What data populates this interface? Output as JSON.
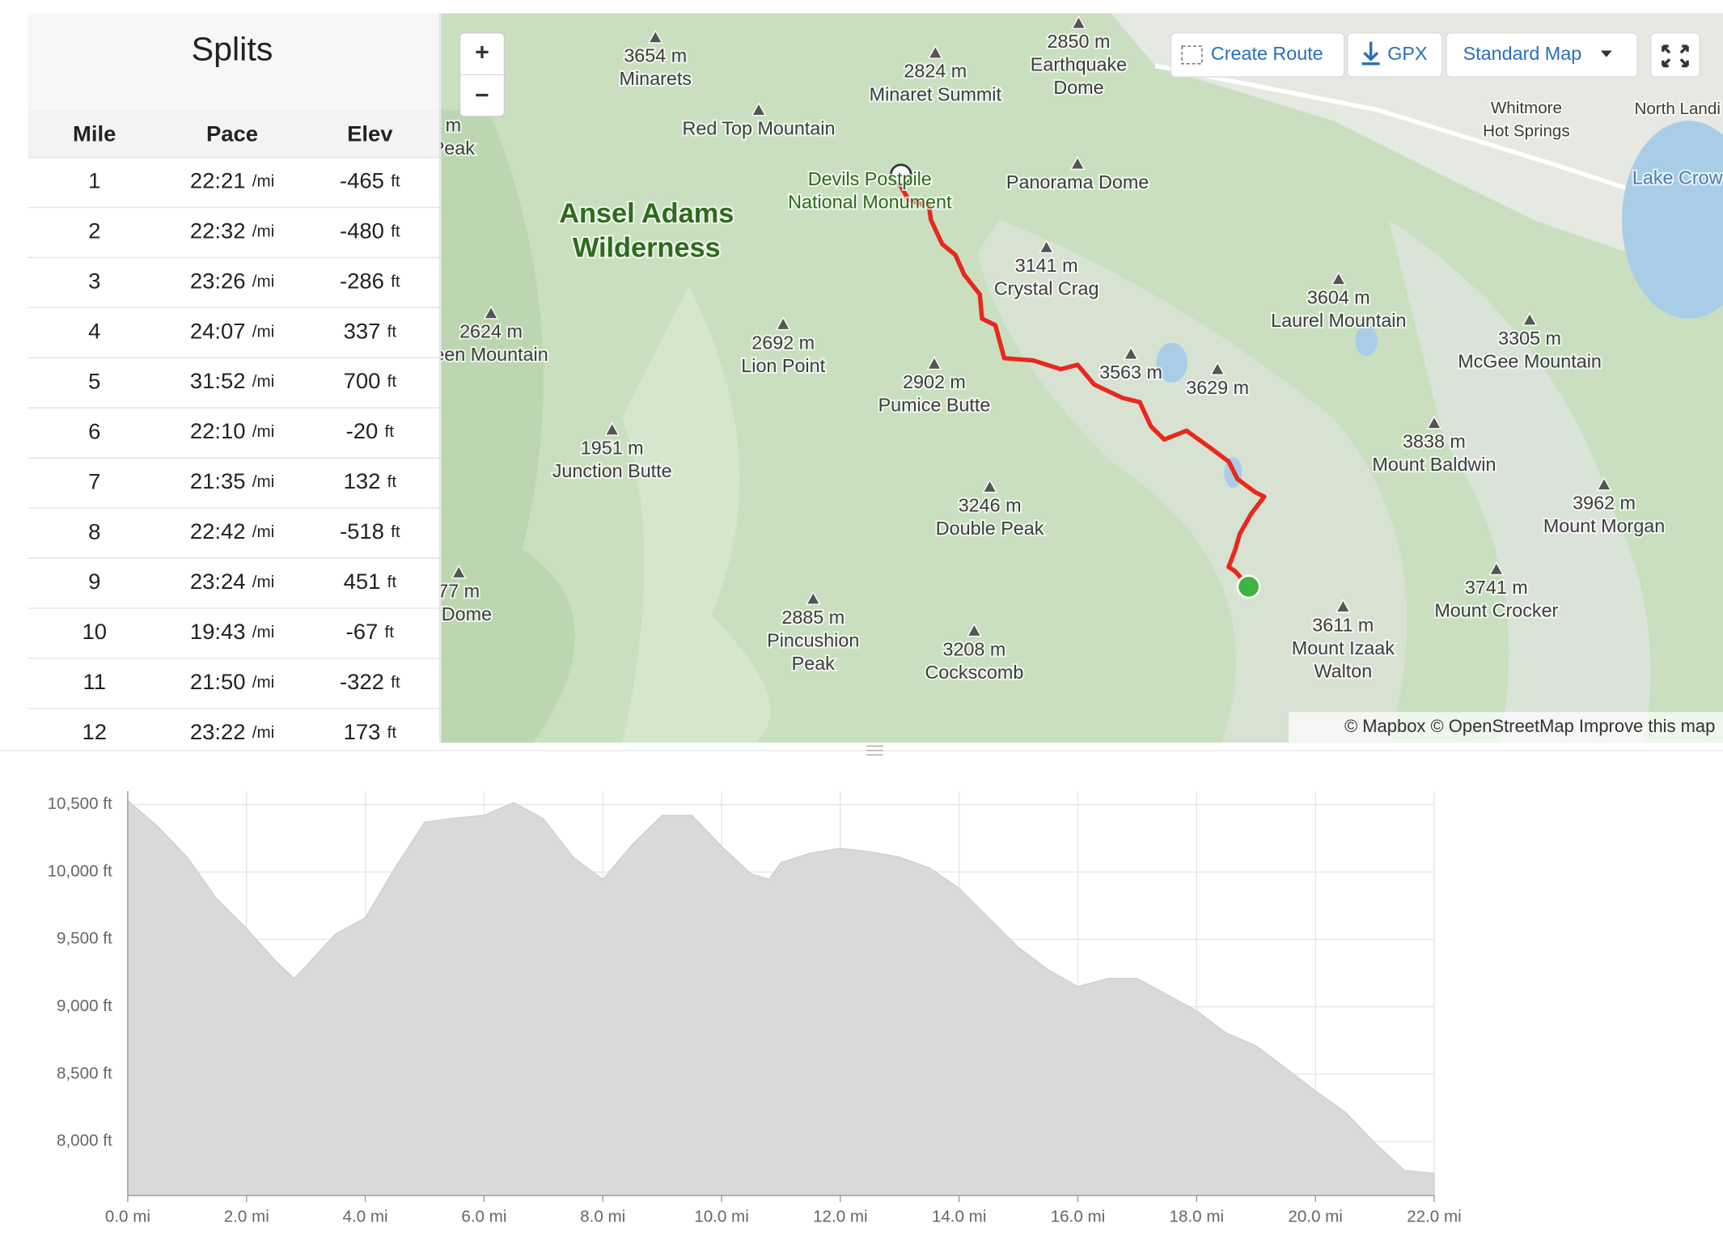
{
  "splits": {
    "title": "Splits",
    "columns": [
      "Mile",
      "Pace",
      "Elev"
    ],
    "pace_unit": "/mi",
    "elev_unit": "ft",
    "rows": [
      [
        "1",
        "22:21",
        "-465"
      ],
      [
        "2",
        "22:32",
        "-480"
      ],
      [
        "3",
        "23:26",
        "-286"
      ],
      [
        "4",
        "24:07",
        "337"
      ],
      [
        "5",
        "31:52",
        "700"
      ],
      [
        "6",
        "22:10",
        "-20"
      ],
      [
        "7",
        "21:35",
        "132"
      ],
      [
        "8",
        "22:42",
        "-518"
      ],
      [
        "9",
        "23:24",
        "451"
      ],
      [
        "10",
        "19:43",
        "-67"
      ],
      [
        "11",
        "21:50",
        "-322"
      ],
      [
        "12",
        "23:22",
        "173"
      ]
    ]
  },
  "map": {
    "zoom_in": "+",
    "zoom_out": "−",
    "buttons": [
      "Create Route",
      "GPX",
      "Standard Map"
    ],
    "attribution": "© Mapbox © OpenStreetMap Improve this map",
    "labels": [
      [
        "3654 m",
        "Minarets"
      ],
      [
        "2824 m",
        "Minaret Summit"
      ],
      [
        "2850 m",
        "Earthquake",
        "Dome"
      ],
      [
        "Red Top Mountain"
      ],
      [
        "m",
        "Peak"
      ],
      [
        "Devils Postpile",
        "National Monument"
      ],
      [
        "Panorama Dome"
      ],
      [
        "Ansel Adams",
        "Wilderness"
      ],
      [
        "3141 m",
        "Crystal Crag"
      ],
      [
        "3604 m",
        "Laurel Mountain"
      ],
      [
        "Whitmore",
        "Hot Springs"
      ],
      [
        "North Landi"
      ],
      [
        "Lake Crow"
      ],
      [
        "2624 m",
        "een Mountain"
      ],
      [
        "2692 m",
        "Lion Point"
      ],
      [
        "3305 m",
        "McGee Mountain"
      ],
      [
        "2902 m",
        "Pumice Butte"
      ],
      [
        "3563 m"
      ],
      [
        "3629 m"
      ],
      [
        "3838 m",
        "Mount Baldwin"
      ],
      [
        "1951 m",
        "Junction Butte"
      ],
      [
        "3246 m",
        "Double Peak"
      ],
      [
        "3962 m",
        "Mount Morgan"
      ],
      [
        "77 m",
        "u Dome"
      ],
      [
        "3741 m",
        "Mount Crocker"
      ],
      [
        "2885 m",
        "Pincushion",
        "Peak"
      ],
      [
        "3208 m",
        "Cockscomb"
      ],
      [
        "3611 m",
        "Mount Izaak",
        "Walton"
      ]
    ]
  },
  "chart_data": {
    "type": "area",
    "color": "#d9d9d9",
    "x": [
      0,
      0.5,
      1,
      1.5,
      2,
      2.5,
      2.8,
      3,
      3.5,
      4,
      4.5,
      5,
      5.5,
      6,
      6.5,
      7,
      7.5,
      8,
      8.5,
      9,
      9.5,
      10,
      10.5,
      10.8,
      11,
      11.5,
      12,
      12.5,
      13,
      13.5,
      14,
      14.5,
      15,
      15.5,
      16,
      16.5,
      17,
      17.5,
      18,
      18.5,
      19,
      19.5,
      20,
      20.5,
      21,
      21.5,
      22
    ],
    "values": [
      10530,
      10340,
      10110,
      9800,
      9580,
      9335,
      9210,
      9300,
      9540,
      9660,
      10030,
      10370,
      10400,
      10420,
      10515,
      10395,
      10110,
      9945,
      10205,
      10420,
      10420,
      10190,
      9985,
      9945,
      10070,
      10140,
      10175,
      10150,
      10110,
      10030,
      9880,
      9660,
      9440,
      9275,
      9150,
      9210,
      9210,
      9090,
      8970,
      8805,
      8710,
      8545,
      8375,
      8220,
      7990,
      7785,
      7765
    ],
    "xlim": [
      0,
      22
    ],
    "ylim": [
      7600,
      10600
    ],
    "grid": true,
    "xticks": [
      {
        "value": 0,
        "label": "0.0 mi"
      },
      {
        "value": 2,
        "label": "2.0 mi"
      },
      {
        "value": 4,
        "label": "4.0 mi"
      },
      {
        "value": 6,
        "label": "6.0 mi"
      },
      {
        "value": 8,
        "label": "8.0 mi"
      },
      {
        "value": 10,
        "label": "10.0 mi"
      },
      {
        "value": 12,
        "label": "12.0 mi"
      },
      {
        "value": 14,
        "label": "14.0 mi"
      },
      {
        "value": 16,
        "label": "16.0 mi"
      },
      {
        "value": 18,
        "label": "18.0 mi"
      },
      {
        "value": 20,
        "label": "20.0 mi"
      },
      {
        "value": 22,
        "label": "22.0 mi"
      }
    ],
    "yticks": [
      {
        "value": 8000,
        "label": "8,000 ft"
      },
      {
        "value": 8500,
        "label": "8,500 ft"
      },
      {
        "value": 9000,
        "label": "9,000 ft"
      },
      {
        "value": 9500,
        "label": "9,500 ft"
      },
      {
        "value": 10000,
        "label": "10,000 ft"
      },
      {
        "value": 10500,
        "label": "10,500 ft"
      }
    ]
  }
}
